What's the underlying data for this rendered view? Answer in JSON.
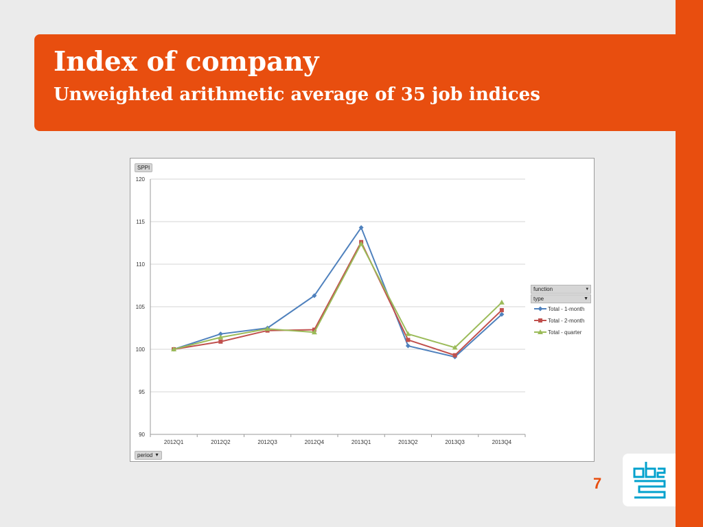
{
  "slide": {
    "title": "Index of company",
    "subtitle": "Unweighted arithmetic average of 35 job indices",
    "page_number": "7",
    "accent_color": "#e84e0f"
  },
  "pivot": {
    "data_field": "SPPI",
    "axis_field": "period",
    "legend_fields": [
      "function",
      "type"
    ]
  },
  "logo": {
    "icon": "cbs-logo-icon"
  },
  "chart_data": {
    "type": "line",
    "categories": [
      "2012Q1",
      "2012Q2",
      "2012Q3",
      "2012Q4",
      "2013Q1",
      "2013Q2",
      "2013Q3",
      "2013Q4"
    ],
    "ylim": [
      90,
      120
    ],
    "yticks": [
      90,
      95,
      100,
      105,
      110,
      115,
      120
    ],
    "grid": true,
    "legend_position": "right",
    "series": [
      {
        "name": "Total - 1-month",
        "color": "#4f81bd",
        "marker": "diamond",
        "values": [
          100.0,
          101.8,
          102.5,
          106.3,
          114.3,
          100.4,
          99.1,
          104.1
        ]
      },
      {
        "name": "Total - 2-month",
        "color": "#c0504d",
        "marker": "square",
        "values": [
          100.0,
          100.9,
          102.2,
          102.3,
          112.6,
          101.1,
          99.3,
          104.6
        ]
      },
      {
        "name": "Total - quarter",
        "color": "#9bbb59",
        "marker": "triangle",
        "values": [
          100.0,
          101.4,
          102.4,
          102.0,
          112.4,
          101.8,
          100.2,
          105.5
        ]
      }
    ]
  }
}
